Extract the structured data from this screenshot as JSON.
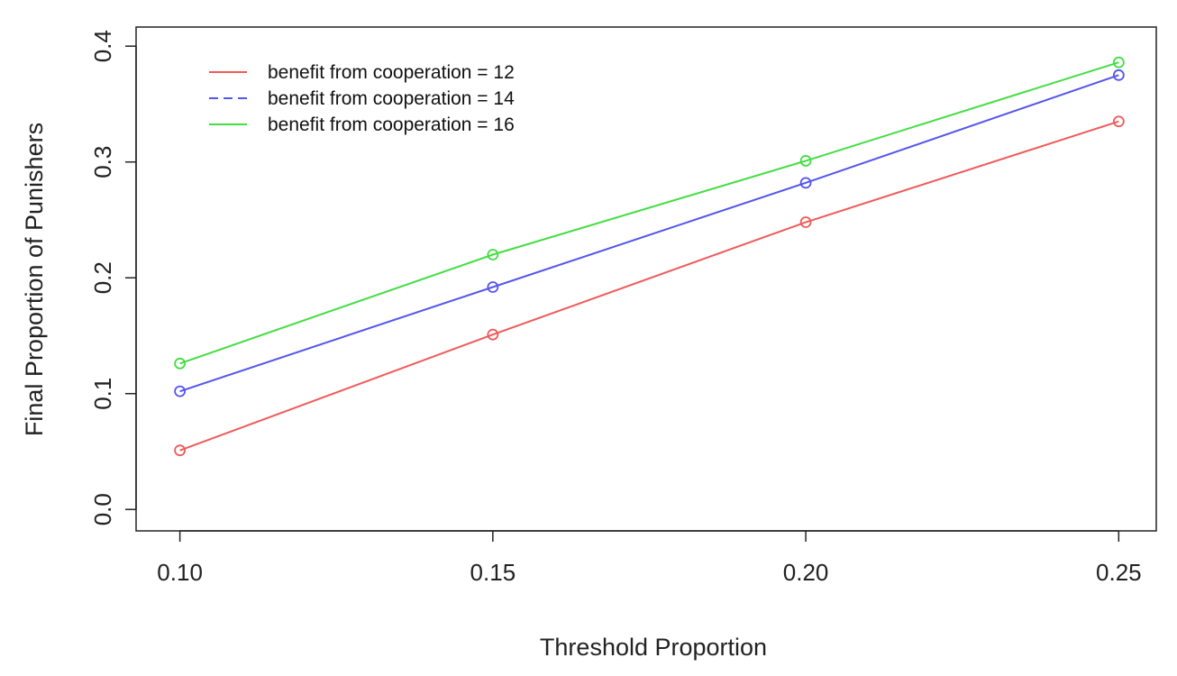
{
  "chart_data": {
    "type": "line",
    "title": "",
    "xlabel": "Threshold Proportion",
    "ylabel": "Final Proportion of Punishers",
    "x": [
      0.1,
      0.15,
      0.2,
      0.25
    ],
    "x_tick_labels": [
      "0.10",
      "0.15",
      "0.20",
      "0.25"
    ],
    "y_tick_labels": [
      "0.0",
      "0.1",
      "0.2",
      "0.3",
      "0.4"
    ],
    "xlim": [
      0.093,
      0.256
    ],
    "ylim": [
      -0.0185,
      0.4165
    ],
    "grid": false,
    "legend_position": "top-left",
    "series": [
      {
        "name": "benefit from cooperation = 12",
        "values": [
          0.051,
          0.151,
          0.248,
          0.335
        ],
        "color": "#f05a5a",
        "line_style": "solid",
        "marker": "open-circle"
      },
      {
        "name": "benefit from cooperation = 14",
        "values": [
          0.102,
          0.192,
          0.282,
          0.375
        ],
        "color": "#5555ee",
        "line_style": "dashed",
        "marker": "open-circle"
      },
      {
        "name": "benefit from cooperation = 16",
        "values": [
          0.126,
          0.22,
          0.301,
          0.386
        ],
        "color": "#44dd44",
        "line_style": "solid",
        "marker": "open-circle"
      }
    ]
  }
}
